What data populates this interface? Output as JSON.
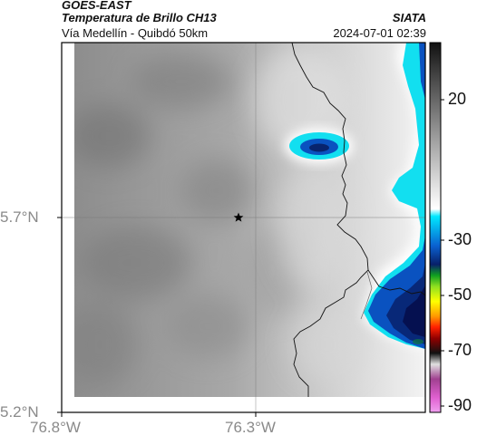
{
  "header": {
    "satellite": "GOES-EAST",
    "product": "Temperatura de Brillo CH13",
    "area": "Vía Medellín - Quibdó 50km",
    "organization": "SIATA",
    "datetime": "2024-07-01 02:39"
  },
  "map": {
    "lon_ticks": [
      "76.8°W",
      "76.3°W"
    ],
    "lat_ticks": [
      "5.7°N",
      "5.2°N"
    ],
    "marker_icon": "star-icon"
  },
  "colorbar": {
    "labels": [
      "20",
      "-30",
      "-50",
      "-70",
      "-90"
    ]
  },
  "colors": {
    "cold_cyan": "#10e0f0",
    "deep_blue": "#0a2fa0",
    "navy": "#051050",
    "gray_warm": "#9a9a9a",
    "gray_light": "#e8e8e8"
  }
}
